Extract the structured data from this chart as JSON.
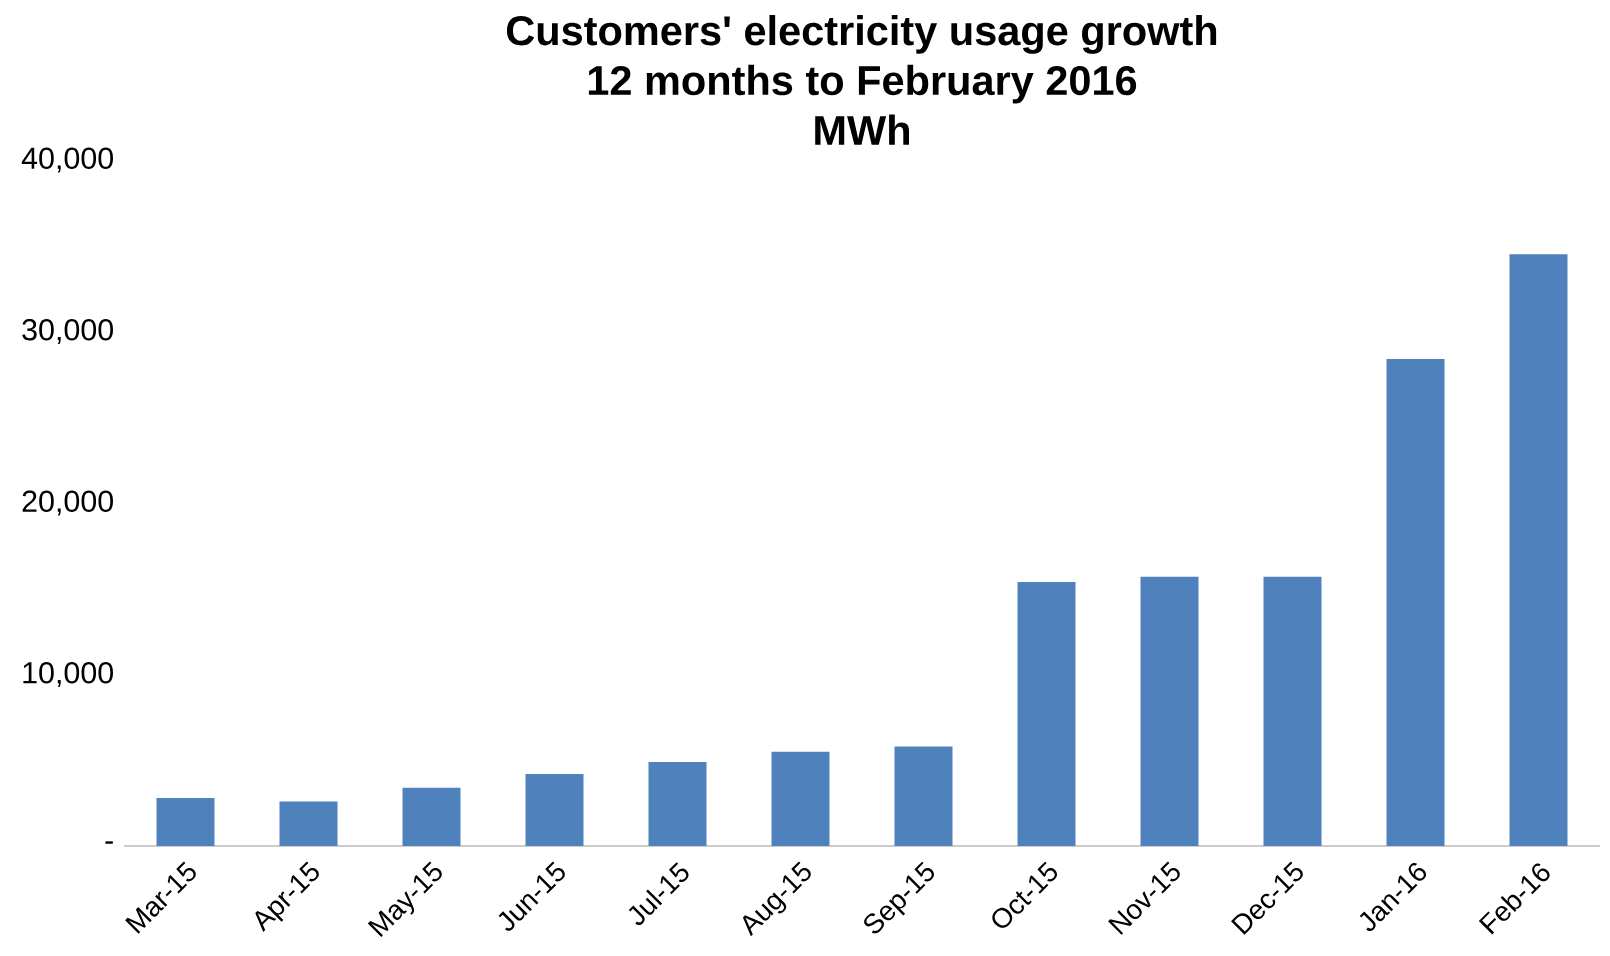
{
  "chart_data": {
    "type": "bar",
    "title": "Customers' electricity usage growth\n12 months to February 2016\nMWh",
    "categories": [
      "Mar-15",
      "Apr-15",
      "May-15",
      "Jun-15",
      "Jul-15",
      "Aug-15",
      "Sep-15",
      "Oct-15",
      "Nov-15",
      "Dec-15",
      "Jan-16",
      "Feb-16"
    ],
    "values": [
      2800,
      2600,
      3400,
      4200,
      4900,
      5500,
      5800,
      15400,
      15700,
      15700,
      28400,
      34500
    ],
    "color": "#4f81bd",
    "ylim": [
      0,
      40000
    ],
    "yticks": [
      {
        "value": 0,
        "label": "-"
      },
      {
        "value": 10000,
        "label": "10,000"
      },
      {
        "value": 20000,
        "label": "20,000"
      },
      {
        "value": 30000,
        "label": "30,000"
      },
      {
        "value": 40000,
        "label": "40,000"
      }
    ],
    "grid": false
  }
}
